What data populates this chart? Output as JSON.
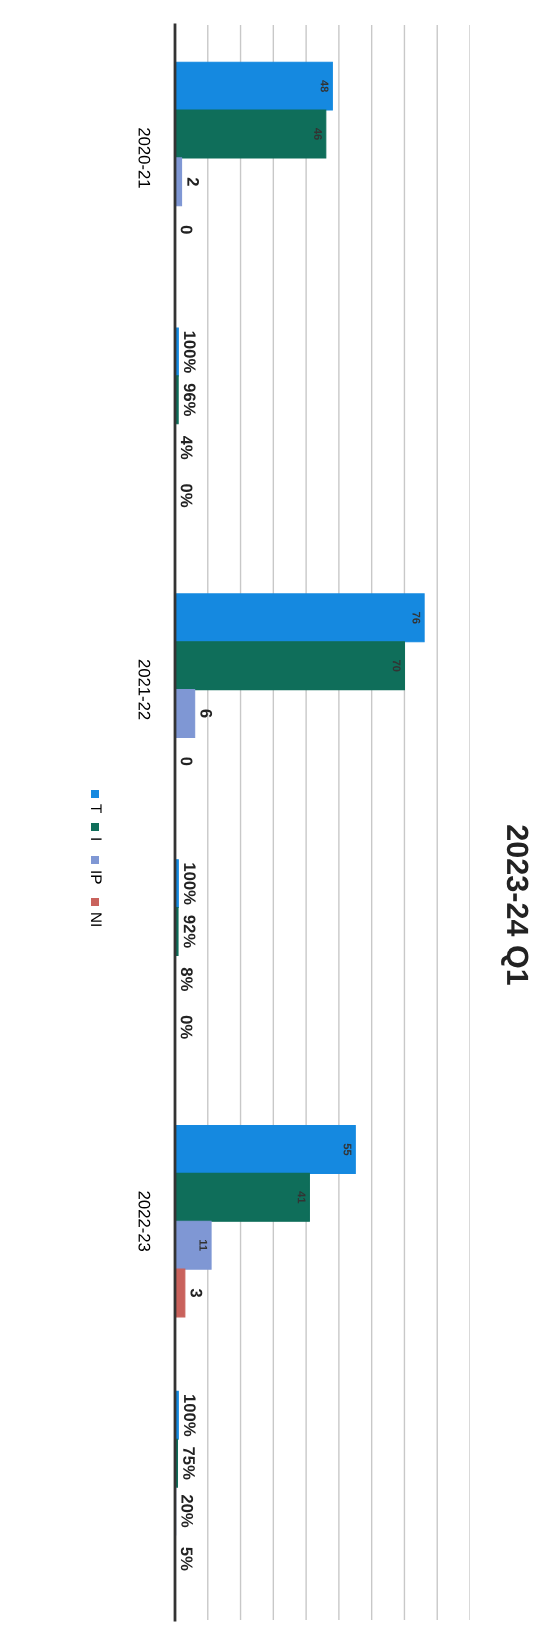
{
  "chart_data": {
    "type": "bar",
    "orientation": "horizontal",
    "title": "2023-24 Q1",
    "categories": [
      "2020-21",
      null,
      "2021-22",
      null,
      "2022-23",
      null
    ],
    "series": [
      {
        "name": "T",
        "color": "#1589e0",
        "values": [
          48,
          1,
          76,
          1,
          55,
          1
        ],
        "value_labels": [
          "48",
          "100%",
          "76",
          "100%",
          "55",
          "100%"
        ]
      },
      {
        "name": "I",
        "color": "#0f6e5a",
        "values": [
          46,
          0.96,
          70,
          0.92,
          41,
          0.75
        ],
        "value_labels": [
          "46",
          "96%",
          "70",
          "92%",
          "41",
          "75%"
        ]
      },
      {
        "name": "IP",
        "color": "#7f97d4",
        "values": [
          2,
          0.04,
          6,
          0.08,
          11,
          0.2
        ],
        "value_labels": [
          "2",
          "4%",
          "6",
          "8%",
          "11",
          "20%"
        ]
      },
      {
        "name": "NI",
        "color": "#c9625c",
        "values": [
          0,
          0,
          0,
          0,
          3,
          0.05
        ],
        "value_labels": [
          "0",
          "0%",
          "0",
          "0%",
          "3",
          "5%"
        ]
      }
    ],
    "xlim": [
      0,
      90
    ],
    "xticks": [
      {
        "value": 0,
        "label": null
      },
      {
        "value": 10,
        "label": null
      },
      {
        "value": 20,
        "label": null
      },
      {
        "value": 30,
        "label": null
      },
      {
        "value": 40,
        "label": null
      },
      {
        "value": 50,
        "label": null
      },
      {
        "value": 60,
        "label": null
      },
      {
        "value": 70,
        "label": null
      },
      {
        "value": 80,
        "label": null
      },
      {
        "value": 90,
        "label": null
      }
    ],
    "grid": "x",
    "legend": "bottom",
    "tick_labels": "y"
  }
}
